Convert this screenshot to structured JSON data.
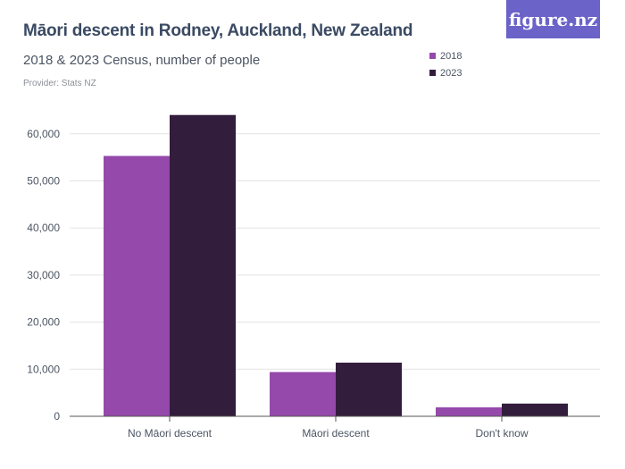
{
  "header": {
    "title": "Māori descent in Rodney, Auckland, New Zealand",
    "subtitle": "2018 & 2023 Census, number of people",
    "provider": "Provider: Stats NZ",
    "logo": "figure.nz"
  },
  "colors": {
    "series_2018": "#9549ab",
    "series_2023": "#331d3c",
    "logo_bg": "#6b63c8",
    "grid": "#e3e3e3"
  },
  "chart_data": {
    "type": "bar",
    "title": "Māori descent in Rodney, Auckland, New Zealand",
    "subtitle": "2018 & 2023 Census, number of people",
    "categories": [
      "No Māori descent",
      "Māori descent",
      "Don't know"
    ],
    "series": [
      {
        "name": "2018",
        "values": [
          55300,
          9400,
          1900
        ]
      },
      {
        "name": "2023",
        "values": [
          64000,
          11400,
          2700
        ]
      }
    ],
    "yticks": [
      0,
      10000,
      20000,
      30000,
      40000,
      50000,
      60000
    ],
    "ytick_labels": [
      "0",
      "10,000",
      "20,000",
      "30,000",
      "40,000",
      "50,000",
      "60,000"
    ],
    "ylim": [
      0,
      64000
    ],
    "legend_position": "top-right",
    "grid": true
  }
}
